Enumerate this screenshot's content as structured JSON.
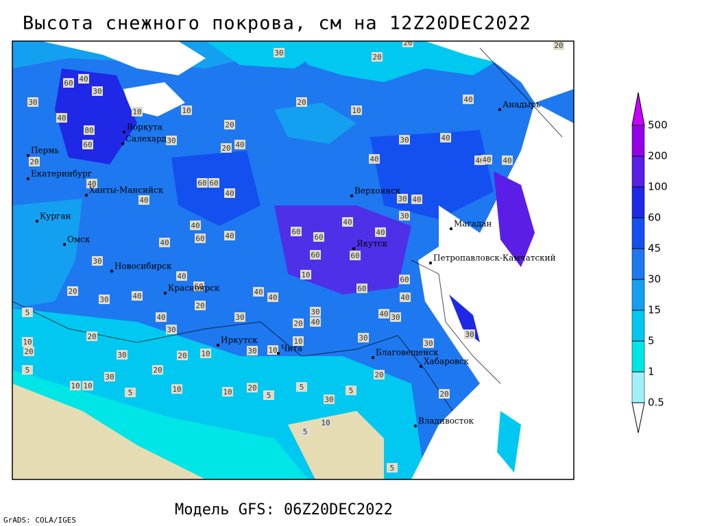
{
  "title": "Высота снежного покрова, см на 12Z20DEC2022",
  "subtitle": "Модель GFS: 06Z20DEC2022",
  "credit": "GrADS: COLA/IGES",
  "colorbar": {
    "levels": [
      0.5,
      1,
      5,
      15,
      30,
      45,
      60,
      100,
      200,
      500
    ],
    "colors": [
      "#ffffff",
      "#a0f0fa",
      "#00e6e6",
      "#00c8f0",
      "#14a0f0",
      "#1e78f0",
      "#1450f0",
      "#1e28e6",
      "#5a1ee6",
      "#9600e6",
      "#c800ff"
    ]
  },
  "cities": [
    "Воркута",
    "Салехард",
    "Пермь",
    "Екатеринбург",
    "Ханты-Мансийск",
    "Курган",
    "Омск",
    "Новосибирск",
    "Красноярск",
    "Иркутск",
    "Чита",
    "Верхоянск",
    "Якутск",
    "Анадырь",
    "Магадан",
    "Петропавловск-Камчатский",
    "Благовещенск",
    "Хабаровск",
    "Владивосток"
  ],
  "contour_labels": [
    30,
    20,
    60,
    40,
    30,
    30,
    20,
    10,
    40,
    80,
    60,
    20,
    40,
    20,
    40,
    40,
    30,
    40,
    40,
    60,
    40,
    40,
    40,
    40,
    60,
    40,
    40,
    60,
    60,
    40,
    40,
    60,
    60,
    30,
    40,
    30,
    30,
    40,
    60,
    20,
    30,
    40,
    40,
    40,
    10,
    60,
    60,
    40,
    20,
    5,
    40,
    30,
    20,
    30,
    40,
    40,
    30,
    20,
    30,
    10,
    20,
    30,
    10,
    30,
    30,
    20,
    10,
    30,
    10,
    30,
    20,
    20,
    10,
    10,
    5,
    10,
    10,
    20,
    5,
    5,
    30,
    5,
    20,
    5,
    5,
    10,
    5,
    20,
    20,
    10,
    10,
    30,
    60,
    40,
    40,
    30,
    20
  ]
}
